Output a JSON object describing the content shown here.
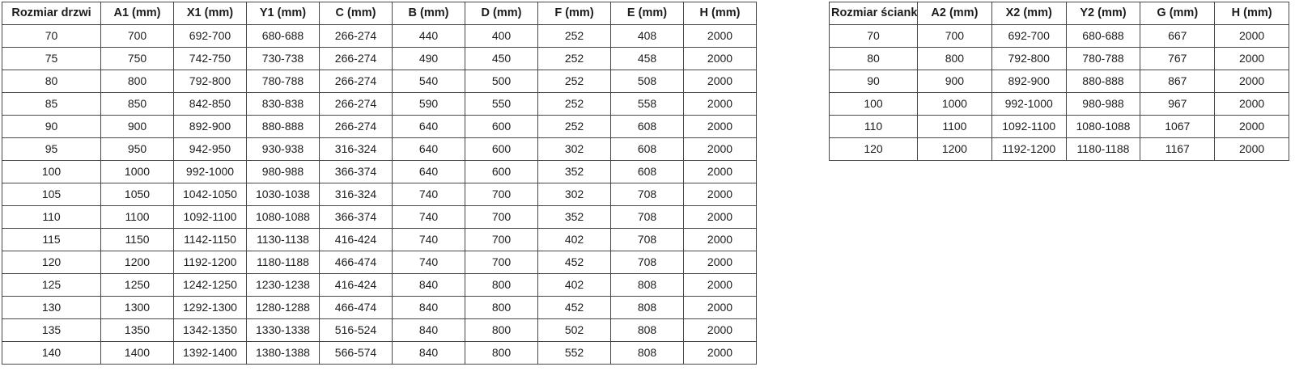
{
  "colors": {
    "background": "#ffffff",
    "border": "#474747",
    "text": "#1c1c1c"
  },
  "tables": {
    "door": {
      "name": "Rozmiar drzwi",
      "headers": [
        "Rozmiar drzwi",
        "A1 (mm)",
        "X1 (mm)",
        "Y1 (mm)",
        "C (mm)",
        "B (mm)",
        "D (mm)",
        "F (mm)",
        "E (mm)",
        "H (mm)"
      ],
      "rows": [
        [
          "70",
          "700",
          "692-700",
          "680-688",
          "266-274",
          "440",
          "400",
          "252",
          "408",
          "2000"
        ],
        [
          "75",
          "750",
          "742-750",
          "730-738",
          "266-274",
          "490",
          "450",
          "252",
          "458",
          "2000"
        ],
        [
          "80",
          "800",
          "792-800",
          "780-788",
          "266-274",
          "540",
          "500",
          "252",
          "508",
          "2000"
        ],
        [
          "85",
          "850",
          "842-850",
          "830-838",
          "266-274",
          "590",
          "550",
          "252",
          "558",
          "2000"
        ],
        [
          "90",
          "900",
          "892-900",
          "880-888",
          "266-274",
          "640",
          "600",
          "252",
          "608",
          "2000"
        ],
        [
          "95",
          "950",
          "942-950",
          "930-938",
          "316-324",
          "640",
          "600",
          "302",
          "608",
          "2000"
        ],
        [
          "100",
          "1000",
          "992-1000",
          "980-988",
          "366-374",
          "640",
          "600",
          "352",
          "608",
          "2000"
        ],
        [
          "105",
          "1050",
          "1042-1050",
          "1030-1038",
          "316-324",
          "740",
          "700",
          "302",
          "708",
          "2000"
        ],
        [
          "110",
          "1100",
          "1092-1100",
          "1080-1088",
          "366-374",
          "740",
          "700",
          "352",
          "708",
          "2000"
        ],
        [
          "115",
          "1150",
          "1142-1150",
          "1130-1138",
          "416-424",
          "740",
          "700",
          "402",
          "708",
          "2000"
        ],
        [
          "120",
          "1200",
          "1192-1200",
          "1180-1188",
          "466-474",
          "740",
          "700",
          "452",
          "708",
          "2000"
        ],
        [
          "125",
          "1250",
          "1242-1250",
          "1230-1238",
          "416-424",
          "840",
          "800",
          "402",
          "808",
          "2000"
        ],
        [
          "130",
          "1300",
          "1292-1300",
          "1280-1288",
          "466-474",
          "840",
          "800",
          "452",
          "808",
          "2000"
        ],
        [
          "135",
          "1350",
          "1342-1350",
          "1330-1338",
          "516-524",
          "840",
          "800",
          "502",
          "808",
          "2000"
        ],
        [
          "140",
          "1400",
          "1392-1400",
          "1380-1388",
          "566-574",
          "840",
          "800",
          "552",
          "808",
          "2000"
        ]
      ]
    },
    "wall": {
      "name": "Rozmiar ścianki",
      "headers": [
        "Rozmiar ścianki",
        "A2 (mm)",
        "X2 (mm)",
        "Y2 (mm)",
        "G (mm)",
        "H (mm)"
      ],
      "rows": [
        [
          "70",
          "700",
          "692-700",
          "680-688",
          "667",
          "2000"
        ],
        [
          "80",
          "800",
          "792-800",
          "780-788",
          "767",
          "2000"
        ],
        [
          "90",
          "900",
          "892-900",
          "880-888",
          "867",
          "2000"
        ],
        [
          "100",
          "1000",
          "992-1000",
          "980-988",
          "967",
          "2000"
        ],
        [
          "110",
          "1100",
          "1092-1100",
          "1080-1088",
          "1067",
          "2000"
        ],
        [
          "120",
          "1200",
          "1192-1200",
          "1180-1188",
          "1167",
          "2000"
        ]
      ]
    }
  }
}
